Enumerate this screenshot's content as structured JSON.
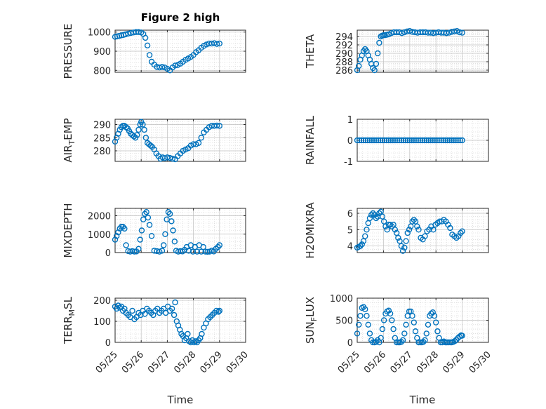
{
  "title": "Figure 2 high",
  "colors": {
    "marker": "#0072BD",
    "grid": "#d0d0d0",
    "axis": "#262626"
  },
  "chart_data": [
    {
      "type": "scatter",
      "id": "pressure",
      "ylabel": "PRESSURE",
      "ylabel_sub": "",
      "xlim": [
        0,
        5
      ],
      "ylim": [
        790,
        1010
      ],
      "yticks": [
        800,
        900,
        1000
      ],
      "x": [
        0.0,
        0.08,
        0.16,
        0.24,
        0.32,
        0.4,
        0.5,
        0.6,
        0.7,
        0.8,
        0.9,
        1.0,
        1.08,
        1.16,
        1.24,
        1.32,
        1.4,
        1.5,
        1.6,
        1.7,
        1.8,
        1.9,
        2.0,
        2.1,
        2.2,
        2.3,
        2.4,
        2.5,
        2.6,
        2.7,
        2.8,
        2.9,
        3.0,
        3.1,
        3.2,
        3.3,
        3.4,
        3.5,
        3.6,
        3.7,
        3.8,
        3.9,
        4.0
      ],
      "y": [
        975,
        978,
        980,
        983,
        985,
        988,
        992,
        995,
        998,
        1000,
        1000,
        998,
        990,
        970,
        930,
        880,
        845,
        830,
        818,
        815,
        818,
        815,
        808,
        800,
        815,
        825,
        828,
        835,
        845,
        855,
        862,
        870,
        880,
        895,
        905,
        918,
        928,
        935,
        940,
        940,
        942,
        938,
        940
      ]
    },
    {
      "type": "scatter",
      "id": "theta",
      "ylabel": "THETA",
      "ylabel_sub": "",
      "xlim": [
        0,
        5
      ],
      "ylim": [
        285.5,
        295.5
      ],
      "yticks": [
        286,
        288,
        290,
        292,
        294
      ],
      "x": [
        0.0,
        0.06,
        0.12,
        0.18,
        0.24,
        0.3,
        0.36,
        0.42,
        0.48,
        0.54,
        0.6,
        0.66,
        0.72,
        0.78,
        0.84,
        0.9,
        0.95,
        1.0,
        1.06,
        1.12,
        1.2,
        1.3,
        1.4,
        1.5,
        1.6,
        1.7,
        1.8,
        1.9,
        2.0,
        2.1,
        2.2,
        2.3,
        2.4,
        2.5,
        2.6,
        2.7,
        2.8,
        2.9,
        3.0,
        3.1,
        3.2,
        3.3,
        3.4,
        3.5,
        3.6,
        3.7,
        3.8,
        3.9,
        4.0
      ],
      "y": [
        286,
        287,
        288.5,
        289.5,
        290.5,
        291,
        290.5,
        289.5,
        288.5,
        287.5,
        286.5,
        286,
        287.5,
        290,
        292.5,
        294,
        294.2,
        294.3,
        294.3,
        294.4,
        294.5,
        294.8,
        295,
        295,
        295,
        294.8,
        295,
        295.2,
        295.3,
        295.1,
        295,
        294.9,
        295,
        295,
        295,
        294.9,
        294.9,
        294.8,
        294.9,
        295,
        294.9,
        294.9,
        294.8,
        294.9,
        295.1,
        295.2,
        295.3,
        295,
        294.9
      ]
    },
    {
      "type": "scatter",
      "id": "air_temp",
      "ylabel": "AIR",
      "ylabel_sub": "T",
      "ylabel_tail": "EMP",
      "xlim": [
        0,
        5
      ],
      "ylim": [
        276,
        292
      ],
      "yticks": [
        280,
        285,
        290
      ],
      "x": [
        0.0,
        0.06,
        0.12,
        0.18,
        0.24,
        0.3,
        0.36,
        0.42,
        0.48,
        0.54,
        0.6,
        0.66,
        0.72,
        0.78,
        0.84,
        0.9,
        0.96,
        1.0,
        1.06,
        1.12,
        1.18,
        1.24,
        1.3,
        1.36,
        1.42,
        1.5,
        1.58,
        1.66,
        1.74,
        1.82,
        1.9,
        2.0,
        2.1,
        2.2,
        2.3,
        2.4,
        2.5,
        2.6,
        2.7,
        2.8,
        2.9,
        3.0,
        3.1,
        3.2,
        3.3,
        3.4,
        3.5,
        3.6,
        3.7,
        3.8,
        3.9,
        4.0
      ],
      "y": [
        283.5,
        285,
        286.5,
        288,
        289,
        289.5,
        289.5,
        289,
        288.5,
        287.5,
        286.5,
        286,
        285.5,
        285,
        286,
        288,
        290,
        291,
        290,
        288,
        285,
        283,
        282.5,
        282,
        281.5,
        280.5,
        279,
        278,
        277,
        277.5,
        277.2,
        277.5,
        277.3,
        277,
        276.8,
        278,
        279,
        280,
        280.5,
        281,
        282,
        282.5,
        282.5,
        283,
        285,
        287,
        288,
        289,
        289.5,
        289.5,
        289.6,
        289.5
      ]
    },
    {
      "type": "scatter",
      "id": "rainfall",
      "ylabel": "RAINFALL",
      "ylabel_sub": "",
      "xlim": [
        0,
        5
      ],
      "ylim": [
        -1,
        1
      ],
      "yticks": [
        -1,
        0,
        1
      ],
      "x": [
        0.0,
        0.08,
        0.16,
        0.24,
        0.32,
        0.4,
        0.48,
        0.56,
        0.64,
        0.72,
        0.8,
        0.88,
        0.96,
        1.04,
        1.12,
        1.2,
        1.28,
        1.36,
        1.44,
        1.52,
        1.6,
        1.68,
        1.76,
        1.84,
        1.92,
        2.0,
        2.08,
        2.16,
        2.24,
        2.32,
        2.4,
        2.48,
        2.56,
        2.64,
        2.72,
        2.8,
        2.88,
        2.96,
        3.04,
        3.12,
        3.2,
        3.28,
        3.36,
        3.44,
        3.52,
        3.6,
        3.68,
        3.76,
        3.84,
        3.92,
        4.0
      ],
      "y": [
        0,
        0,
        0,
        0,
        0,
        0,
        0,
        0,
        0,
        0,
        0,
        0,
        0,
        0,
        0,
        0,
        0,
        0,
        0,
        0,
        0,
        0,
        0,
        0,
        0,
        0,
        0,
        0,
        0,
        0,
        0,
        0,
        0,
        0,
        0,
        0,
        0,
        0,
        0,
        0,
        0,
        0,
        0,
        0,
        0,
        0,
        0,
        0,
        0,
        0,
        0
      ]
    },
    {
      "type": "scatter",
      "id": "mixdepth",
      "ylabel": "MIXDEPTH",
      "ylabel_sub": "",
      "xlim": [
        0,
        5
      ],
      "ylim": [
        0,
        2400
      ],
      "yticks": [
        0,
        1000,
        2000
      ],
      "x": [
        0.0,
        0.06,
        0.12,
        0.18,
        0.24,
        0.3,
        0.36,
        0.42,
        0.5,
        0.58,
        0.66,
        0.74,
        0.82,
        0.9,
        0.96,
        1.02,
        1.08,
        1.14,
        1.2,
        1.26,
        1.32,
        1.4,
        1.5,
        1.6,
        1.7,
        1.8,
        1.86,
        1.92,
        1.98,
        2.04,
        2.1,
        2.16,
        2.22,
        2.28,
        2.34,
        2.42,
        2.5,
        2.58,
        2.66,
        2.74,
        2.82,
        2.9,
        2.98,
        3.06,
        3.14,
        3.22,
        3.3,
        3.38,
        3.46,
        3.54,
        3.62,
        3.7,
        3.78,
        3.86,
        3.94,
        4.0
      ],
      "y": [
        700,
        900,
        1100,
        1300,
        1400,
        1400,
        1300,
        400,
        80,
        50,
        80,
        50,
        60,
        200,
        700,
        1200,
        1800,
        2100,
        2200,
        1900,
        1500,
        900,
        100,
        80,
        50,
        100,
        400,
        1000,
        1800,
        2200,
        2100,
        1700,
        1200,
        600,
        100,
        50,
        80,
        60,
        150,
        300,
        100,
        400,
        50,
        300,
        50,
        400,
        50,
        300,
        50,
        40,
        50,
        100,
        60,
        200,
        300,
        400
      ]
    },
    {
      "type": "scatter",
      "id": "h2omixra",
      "ylabel": "H2OMIXRA",
      "ylabel_sub": "",
      "xlim": [
        0,
        5
      ],
      "ylim": [
        3.6,
        6.3
      ],
      "yticks": [
        4,
        5,
        6
      ],
      "x": [
        0.0,
        0.06,
        0.12,
        0.18,
        0.24,
        0.3,
        0.36,
        0.42,
        0.48,
        0.54,
        0.6,
        0.66,
        0.72,
        0.78,
        0.84,
        0.9,
        0.96,
        1.02,
        1.08,
        1.14,
        1.2,
        1.26,
        1.32,
        1.38,
        1.44,
        1.5,
        1.56,
        1.62,
        1.68,
        1.74,
        1.8,
        1.86,
        1.92,
        1.98,
        2.04,
        2.1,
        2.16,
        2.22,
        2.28,
        2.34,
        2.42,
        2.5,
        2.58,
        2.66,
        2.74,
        2.82,
        2.9,
        2.98,
        3.06,
        3.14,
        3.22,
        3.3,
        3.38,
        3.46,
        3.54,
        3.62,
        3.7,
        3.78,
        3.86,
        3.94,
        4.0
      ],
      "y": [
        3.9,
        3.95,
        4.0,
        4.1,
        4.3,
        4.6,
        5.0,
        5.4,
        5.7,
        5.9,
        6.0,
        5.9,
        5.7,
        5.8,
        6.0,
        6.1,
        5.8,
        5.5,
        5.2,
        5.0,
        5.3,
        5.3,
        5.2,
        5.3,
        5.0,
        4.8,
        4.5,
        4.3,
        4.0,
        3.7,
        3.9,
        4.3,
        4.8,
        5.0,
        5.2,
        5.5,
        5.6,
        5.5,
        5.2,
        5.0,
        4.5,
        4.4,
        4.6,
        4.9,
        5.0,
        5.2,
        5.0,
        5.3,
        5.4,
        5.5,
        5.5,
        5.6,
        5.5,
        5.3,
        5.1,
        4.7,
        4.6,
        4.5,
        4.6,
        4.8,
        4.9
      ]
    },
    {
      "type": "scatter",
      "id": "terr_msl",
      "ylabel": "TERR",
      "ylabel_sub": "M",
      "ylabel_tail": "SL",
      "xlim": [
        0,
        5
      ],
      "ylim": [
        0,
        210
      ],
      "yticks": [
        0,
        100,
        200
      ],
      "x": [
        0.0,
        0.06,
        0.12,
        0.18,
        0.24,
        0.3,
        0.36,
        0.42,
        0.5,
        0.58,
        0.66,
        0.74,
        0.82,
        0.9,
        0.98,
        1.06,
        1.14,
        1.22,
        1.3,
        1.38,
        1.46,
        1.54,
        1.62,
        1.7,
        1.78,
        1.86,
        1.94,
        2.02,
        2.1,
        2.18,
        2.26,
        2.3,
        2.36,
        2.42,
        2.48,
        2.54,
        2.6,
        2.66,
        2.72,
        2.78,
        2.84,
        2.9,
        2.96,
        3.02,
        3.08,
        3.14,
        3.2,
        3.26,
        3.32,
        3.4,
        3.48,
        3.56,
        3.64,
        3.72,
        3.8,
        3.88,
        3.96,
        4.0
      ],
      "y": [
        170,
        160,
        175,
        165,
        170,
        150,
        160,
        140,
        130,
        120,
        150,
        110,
        120,
        140,
        130,
        150,
        135,
        160,
        150,
        140,
        130,
        150,
        160,
        140,
        150,
        160,
        140,
        170,
        150,
        160,
        130,
        190,
        100,
        80,
        60,
        40,
        30,
        10,
        20,
        40,
        5,
        0,
        10,
        0,
        5,
        0,
        10,
        20,
        40,
        70,
        90,
        110,
        120,
        130,
        140,
        150,
        145,
        150
      ]
    },
    {
      "type": "scatter",
      "id": "sun_flux",
      "ylabel": "SUN",
      "ylabel_sub": "F",
      "ylabel_tail": "LUX",
      "xlim": [
        0,
        5
      ],
      "ylim": [
        0,
        1000
      ],
      "yticks": [
        0,
        500,
        1000
      ],
      "x": [
        0.0,
        0.06,
        0.12,
        0.18,
        0.24,
        0.3,
        0.36,
        0.42,
        0.48,
        0.54,
        0.6,
        0.66,
        0.72,
        0.78,
        0.84,
        0.9,
        0.96,
        1.02,
        1.08,
        1.14,
        1.2,
        1.26,
        1.32,
        1.38,
        1.44,
        1.5,
        1.56,
        1.62,
        1.68,
        1.74,
        1.8,
        1.86,
        1.92,
        1.98,
        2.04,
        2.1,
        2.16,
        2.22,
        2.28,
        2.34,
        2.4,
        2.46,
        2.52,
        2.58,
        2.64,
        2.7,
        2.76,
        2.82,
        2.88,
        2.94,
        3.0,
        3.06,
        3.12,
        3.18,
        3.24,
        3.3,
        3.36,
        3.42,
        3.48,
        3.54,
        3.6,
        3.66,
        3.72,
        3.78,
        3.84,
        3.9,
        3.96,
        4.0
      ],
      "y": [
        200,
        400,
        600,
        780,
        800,
        750,
        600,
        400,
        200,
        50,
        0,
        0,
        10,
        50,
        0,
        100,
        300,
        500,
        650,
        700,
        720,
        650,
        500,
        300,
        100,
        0,
        0,
        0,
        10,
        50,
        200,
        400,
        600,
        700,
        700,
        600,
        450,
        250,
        100,
        0,
        0,
        0,
        10,
        50,
        200,
        400,
        600,
        650,
        680,
        600,
        450,
        250,
        100,
        0,
        0,
        20,
        0,
        0,
        0,
        0,
        0,
        10,
        30,
        60,
        100,
        130,
        160,
        150
      ]
    }
  ],
  "x_ticks": [
    "05/25",
    "05/26",
    "05/27",
    "05/28",
    "05/29",
    "05/30"
  ],
  "xlabel": "Time"
}
